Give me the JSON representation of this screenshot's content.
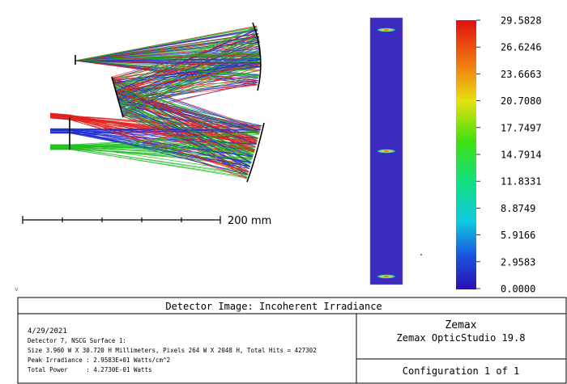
{
  "layout": {
    "scale_label": "200 mm",
    "corner_mark": "v"
  },
  "colorbar": {
    "range": [
      0,
      29.5828
    ],
    "ticks": [
      {
        "value": 29.5828,
        "label": "29.5828"
      },
      {
        "value": 26.6246,
        "label": "26.6246"
      },
      {
        "value": 23.6663,
        "label": "23.6663"
      },
      {
        "value": 20.708,
        "label": "20.7080"
      },
      {
        "value": 17.7497,
        "label": "17.7497"
      },
      {
        "value": 14.7914,
        "label": "14.7914"
      },
      {
        "value": 11.8331,
        "label": "11.8331"
      },
      {
        "value": 8.8749,
        "label": "8.8749"
      },
      {
        "value": 5.9166,
        "label": "5.9166"
      },
      {
        "value": 2.9583,
        "label": "2.9583"
      },
      {
        "value": 0,
        "label": "0.0000"
      }
    ]
  },
  "info": {
    "title": "Detector Image: Incoherent Irradiance",
    "date": "4/29/2021",
    "detector": "Detector 7, NSCG Surface 1:",
    "size": "Size 3.960 W X 30.720 H Millimeters, Pixels 264 W X 2048 H, Total Hits = 427302",
    "peak": "Peak Irradiance : 2.9583E+01 Watts/cm^2",
    "power": "Total Power     : 4.2730E-01 Watts",
    "brand": "Zemax",
    "product": "Zemax OpticStudio 19.8",
    "config": "Configuration 1 of 1"
  }
}
